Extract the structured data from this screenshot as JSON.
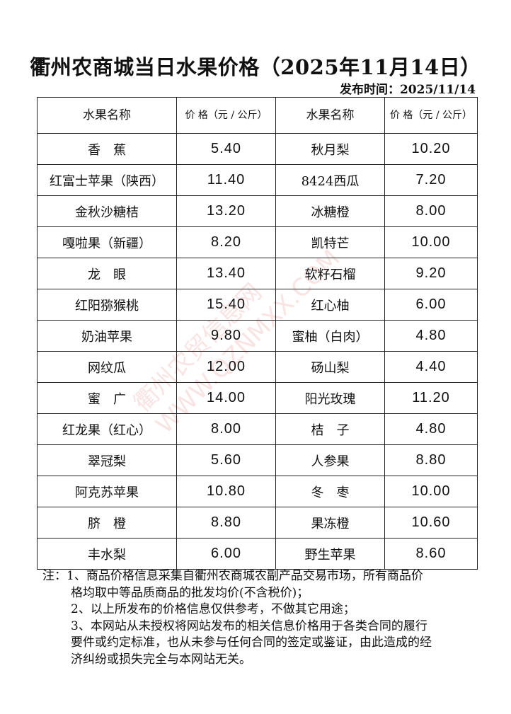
{
  "title": "衢州农商城当日水果价格（2025年11月14日）",
  "publish_time": "发布时间：2025/11/14",
  "table": {
    "headers": [
      "水果名称",
      "价 格（元 / 公斤）",
      "水果名称",
      "价 格（元 / 公斤）"
    ],
    "header_name": "水果名称",
    "header_price_line1": "价 格",
    "header_price_line2": "（元 / 公斤）",
    "rows": [
      [
        "香　蕉",
        "5.40",
        "秋月梨",
        "10.20"
      ],
      [
        "红富士苹果（陕西）",
        "11.40",
        "8424西瓜",
        "7.20"
      ],
      [
        "金秋沙糖桔",
        "13.20",
        "冰糖橙",
        "8.00"
      ],
      [
        "嘎啦果（新疆）",
        "8.20",
        "凯特芒",
        "10.00"
      ],
      [
        "龙　眼",
        "13.40",
        "软籽石榴",
        "9.20"
      ],
      [
        "红阳猕猴桃",
        "15.40",
        "红心柚",
        "6.00"
      ],
      [
        "奶油苹果",
        "9.80",
        "蜜柚（白肉）",
        "4.80"
      ],
      [
        "网纹瓜",
        "12.00",
        "砀山梨",
        "4.40"
      ],
      [
        "蜜　广",
        "14.00",
        "阳光玫瑰",
        "11.20"
      ],
      [
        "红龙果（红心）",
        "8.00",
        "桔　子",
        "4.80"
      ],
      [
        "翠冠梨",
        "5.60",
        "人参果",
        "8.80"
      ],
      [
        "阿克苏苹果",
        "10.80",
        "冬　枣",
        "10.00"
      ],
      [
        "脐　橙",
        "8.80",
        "果冻橙",
        "10.60"
      ],
      [
        "丰水梨",
        "6.00",
        "野生苹果",
        "8.60"
      ]
    ]
  },
  "notes": [
    "注：1、商品价格信息采集自衢州农商城农副产品交易市场，所有商品价",
    "格均取中等品质商品的批发均价(不含税价)；",
    "2、以上所发布的价格信息仅供参考，不做其它用途；",
    "3、本网站从未授权将网站发布的相关信息价格用于各类合同的履行",
    "要件或约定标准，也从未参与任何合同的签定或鉴证，由此造成的经",
    "济纠纷或损失完全与本网站无关。"
  ],
  "watermark": [
    "衢州农贸信息网",
    "WWW.QZNMXX.COM"
  ],
  "colors": {
    "watermark": "#dc5050",
    "text": "#111111"
  }
}
